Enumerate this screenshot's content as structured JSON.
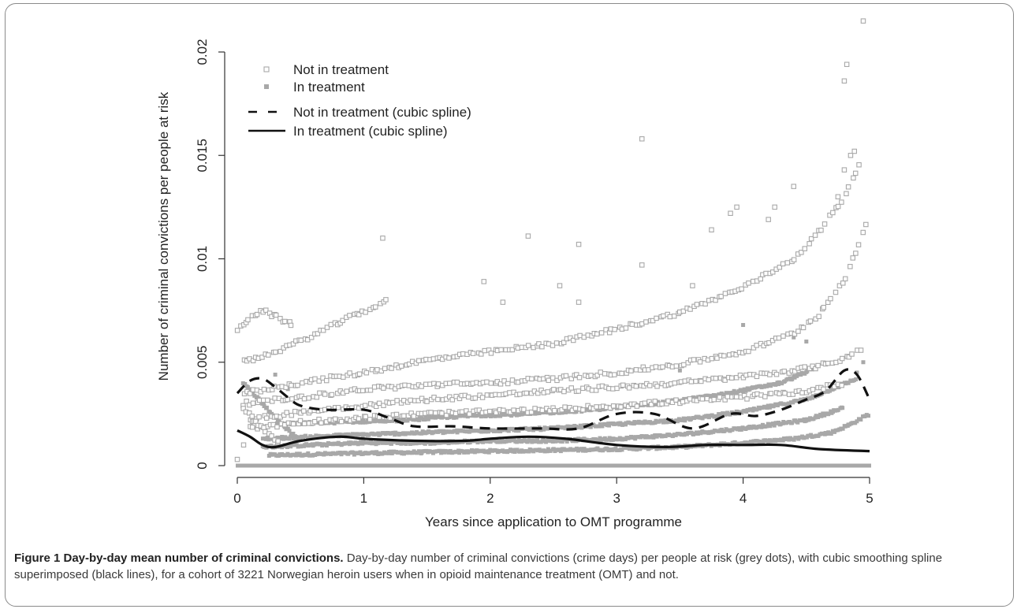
{
  "chart_data": {
    "type": "scatter",
    "xlabel": "Years since application to OMT programme",
    "ylabel": "Number of criminal convictions per people at risk",
    "xlim": [
      0,
      5
    ],
    "ylim": [
      0,
      0.021
    ],
    "xticks": [
      "0",
      "1",
      "2",
      "3",
      "4",
      "5"
    ],
    "yticks": [
      "0",
      "0.005",
      "0.01",
      "0.015",
      "0.02"
    ],
    "grid": false,
    "legend_position": "top-left",
    "legend": [
      {
        "label": "Not in treatment",
        "marker": "open-square"
      },
      {
        "label": "In treatment",
        "marker": "filled-square"
      },
      {
        "label": "Not in treatment (cubic spline)",
        "marker": "dashed-line"
      },
      {
        "label": "In treatment (cubic spline)",
        "marker": "solid-line"
      }
    ],
    "colors": {
      "points": "#a8a8a8",
      "spline": "#111111"
    },
    "series": [
      {
        "name": "Not in treatment (cubic spline)",
        "style": "dashed",
        "x": [
          0,
          0.1,
          0.2,
          0.3,
          0.4,
          0.5,
          0.7,
          1.0,
          1.2,
          1.4,
          1.7,
          2.0,
          2.4,
          2.7,
          3.0,
          3.3,
          3.6,
          3.9,
          4.1,
          4.3,
          4.5,
          4.65,
          4.8,
          4.9,
          5.0
        ],
        "y": [
          0.0035,
          0.0041,
          0.0042,
          0.0038,
          0.0033,
          0.0029,
          0.0027,
          0.0027,
          0.0023,
          0.0019,
          0.0019,
          0.0018,
          0.0018,
          0.0018,
          0.0025,
          0.0025,
          0.0018,
          0.0025,
          0.0024,
          0.0027,
          0.0032,
          0.0036,
          0.0046,
          0.0044,
          0.0032
        ]
      },
      {
        "name": "In treatment (cubic spline)",
        "style": "solid",
        "x": [
          0,
          0.1,
          0.2,
          0.3,
          0.5,
          0.8,
          1.0,
          1.4,
          1.8,
          2.0,
          2.3,
          2.6,
          3.0,
          3.4,
          3.7,
          4.0,
          4.3,
          4.6,
          5.0
        ],
        "y": [
          0.0017,
          0.0014,
          0.001,
          0.0009,
          0.0012,
          0.0014,
          0.0013,
          0.0012,
          0.0012,
          0.0013,
          0.0014,
          0.0013,
          0.001,
          0.0009,
          0.001,
          0.001,
          0.001,
          0.0008,
          0.0007
        ]
      }
    ],
    "scatter_groups": {
      "not_in_treatment": {
        "bands": [
          {
            "x": [
              0,
              0.1,
              0.2,
              0.3,
              0.45
            ],
            "y": [
              0.0065,
              0.0072,
              0.0075,
              0.0072,
              0.0068
            ]
          },
          {
            "x": [
              0.05,
              0.3,
              0.6,
              0.9,
              1.2
            ],
            "y": [
              0.005,
              0.0055,
              0.0063,
              0.0072,
              0.008
            ]
          },
          {
            "x": [
              0.05,
              0.5,
              1.0,
              1.5,
              2.0,
              2.5,
              3.0,
              3.5,
              4.0,
              4.4,
              4.6,
              4.8,
              4.95
            ],
            "y": [
              0.0035,
              0.004,
              0.0045,
              0.0051,
              0.0055,
              0.0059,
              0.0066,
              0.0074,
              0.0086,
              0.01,
              0.0113,
              0.013,
              0.015
            ]
          },
          {
            "x": [
              0.05,
              0.5,
              1.0,
              1.5,
              2.0,
              2.5,
              3.0,
              3.5,
              4.0,
              4.4,
              4.6,
              4.8,
              5.0
            ],
            "y": [
              0.003,
              0.0033,
              0.0037,
              0.0039,
              0.004,
              0.0042,
              0.0045,
              0.0049,
              0.0055,
              0.0064,
              0.0073,
              0.009,
              0.012
            ]
          },
          {
            "x": [
              0.1,
              0.5,
              1.0,
              1.5,
              2.0,
              2.5,
              3.0,
              3.5,
              4.0,
              4.4,
              4.6,
              4.8,
              4.95
            ],
            "y": [
              0.0022,
              0.0026,
              0.0029,
              0.0032,
              0.0034,
              0.0036,
              0.0038,
              0.004,
              0.0043,
              0.0046,
              0.0048,
              0.0052,
              0.0057
            ]
          },
          {
            "x": [
              0.1,
              0.5,
              1.0,
              1.5,
              2.0,
              2.5,
              3.0,
              3.5,
              4.0,
              4.5,
              4.8
            ],
            "y": [
              0.0018,
              0.0021,
              0.0023,
              0.0025,
              0.0026,
              0.0027,
              0.0029,
              0.0031,
              0.0033,
              0.0036,
              0.004
            ]
          },
          {
            "x": [
              0.05,
              0.2,
              0.35
            ],
            "y": [
              0.0028,
              0.0018,
              0.001
            ]
          }
        ],
        "outliers": [
          {
            "x": 1.15,
            "y": 0.011
          },
          {
            "x": 2.3,
            "y": 0.0111
          },
          {
            "x": 2.7,
            "y": 0.0107
          },
          {
            "x": 3.2,
            "y": 0.0158
          },
          {
            "x": 3.2,
            "y": 0.0097
          },
          {
            "x": 1.95,
            "y": 0.0089
          },
          {
            "x": 2.1,
            "y": 0.0079
          },
          {
            "x": 2.55,
            "y": 0.0087
          },
          {
            "x": 2.7,
            "y": 0.0079
          },
          {
            "x": 3.6,
            "y": 0.0087
          },
          {
            "x": 3.75,
            "y": 0.0114
          },
          {
            "x": 3.9,
            "y": 0.0122
          },
          {
            "x": 3.95,
            "y": 0.0125
          },
          {
            "x": 4.2,
            "y": 0.0119
          },
          {
            "x": 4.25,
            "y": 0.0125
          },
          {
            "x": 4.4,
            "y": 0.0135
          },
          {
            "x": 4.8,
            "y": 0.0186
          },
          {
            "x": 4.82,
            "y": 0.0194
          },
          {
            "x": 4.95,
            "y": 0.0215
          },
          {
            "x": 4.85,
            "y": 0.015
          },
          {
            "x": 4.88,
            "y": 0.0152
          },
          {
            "x": 4.75,
            "y": 0.013
          },
          {
            "x": 4.8,
            "y": 0.0143
          },
          {
            "x": 0.0,
            "y": 0.0003
          },
          {
            "x": 0.05,
            "y": 0.001
          }
        ]
      },
      "in_treatment": {
        "bands": [
          {
            "x": [
              0.25,
              1.0,
              2.0,
              3.0,
              3.5,
              4.0,
              4.4,
              4.7,
              4.85,
              5.0
            ],
            "y": [
              0.0005,
              0.0006,
              0.0007,
              0.0008,
              0.0009,
              0.0011,
              0.0013,
              0.0016,
              0.002,
              0.0025
            ]
          },
          {
            "x": [
              0.2,
              0.6,
              1.0,
              1.5,
              2.0,
              2.5,
              3.0,
              3.5,
              4.0,
              4.5,
              4.8
            ],
            "y": [
              0.0009,
              0.001,
              0.0011,
              0.0011,
              0.0012,
              0.0012,
              0.0013,
              0.0015,
              0.0018,
              0.0022,
              0.0028
            ]
          },
          {
            "x": [
              0.2,
              0.6,
              1.0,
              1.5,
              2.0,
              2.5,
              3.0,
              3.5,
              4.0,
              4.5,
              4.9
            ],
            "y": [
              0.0013,
              0.0014,
              0.0015,
              0.0016,
              0.0017,
              0.0018,
              0.002,
              0.0022,
              0.0026,
              0.0032,
              0.0042
            ]
          },
          {
            "x": [
              0.3,
              0.8,
              1.3,
              1.8,
              2.3,
              2.8,
              3.3,
              3.8,
              4.3,
              4.6
            ],
            "y": [
              0.002,
              0.0021,
              0.0022,
              0.0024,
              0.0025,
              0.0027,
              0.003,
              0.0034,
              0.004,
              0.0048
            ]
          },
          {
            "x": [
              0.05,
              0.2,
              0.35,
              0.5
            ],
            "y": [
              0.004,
              0.003,
              0.002,
              0.0012
            ]
          }
        ],
        "baseline": {
          "y": 0,
          "x_range": [
            0,
            5
          ]
        },
        "outliers": [
          {
            "x": 0.3,
            "y": 0.0044
          },
          {
            "x": 4.5,
            "y": 0.006
          },
          {
            "x": 4.4,
            "y": 0.0062
          },
          {
            "x": 4.95,
            "y": 0.005
          },
          {
            "x": 4.9,
            "y": 0.0045
          },
          {
            "x": 0.4,
            "y": 0.0037
          },
          {
            "x": 4.0,
            "y": 0.0068
          },
          {
            "x": 3.5,
            "y": 0.0046
          }
        ]
      }
    }
  },
  "caption": {
    "title": "Figure 1 Day-by-day mean number of criminal convictions.",
    "text": " Day-by-day number of criminal convictions (crime days) per people at risk (grey dots), with cubic smoothing spline superimposed (black lines), for a cohort of 3221 Norwegian heroin users when in opioid maintenance treatment (OMT) and not."
  }
}
